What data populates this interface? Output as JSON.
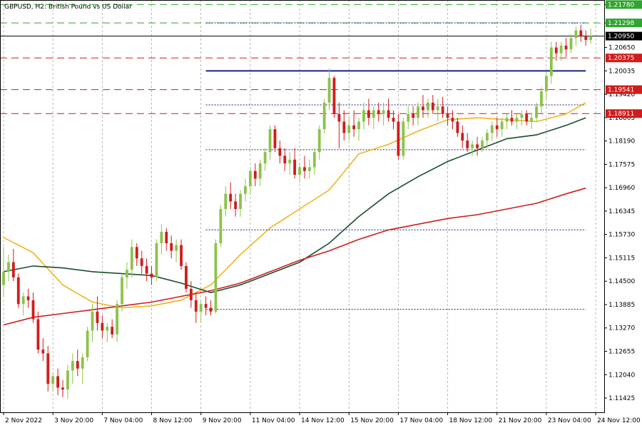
{
  "chart_data": {
    "type": "candlestick",
    "title": "GBPUSD, H2:  British Pound vs US Dollar",
    "price_ticks": [
      "1.21780",
      "1.21298",
      "1.20650",
      "1.20035",
      "1.19420",
      "1.18805",
      "1.18190",
      "1.17575",
      "1.16960",
      "1.16345",
      "1.15730",
      "1.15115",
      "1.14500",
      "1.13885",
      "1.13270",
      "1.12655",
      "1.12040",
      "1.11425"
    ],
    "ylim": [
      1.1105,
      1.219
    ],
    "time_labels": [
      {
        "label": "2 Nov 2022",
        "bar": 0
      },
      {
        "label": "3 Nov 20:00",
        "bar": 10
      },
      {
        "label": "7 Nov 04:00",
        "bar": 20
      },
      {
        "label": "8 Nov 12:00",
        "bar": 30
      },
      {
        "label": "9 Nov 20:00",
        "bar": 40
      },
      {
        "label": "11 Nov 04:00",
        "bar": 50
      },
      {
        "label": "14 Nov 12:00",
        "bar": 60
      },
      {
        "label": "15 Nov 20:00",
        "bar": 70
      },
      {
        "label": "17 Nov 04:00",
        "bar": 80
      },
      {
        "label": "18 Nov 12:00",
        "bar": 90
      },
      {
        "label": "21 Nov 20:00",
        "bar": 100
      },
      {
        "label": "23 Nov 04:00",
        "bar": 110
      },
      {
        "label": "24 Nov 12:00",
        "bar": 120
      }
    ],
    "horizontal_levels": [
      {
        "value": 1.2178,
        "label": "1.21780",
        "color": "#2fa52f",
        "style": "dashed",
        "badge": true
      },
      {
        "value": 1.21298,
        "label": "1.21298",
        "color": "#2fa52f",
        "style": "dashed",
        "badge": true
      },
      {
        "value": 1.2095,
        "label": "1.20950",
        "color": "#000000",
        "style": "solid",
        "badge": true
      },
      {
        "value": 1.20375,
        "label": "1.20375",
        "color": "#d01c1c",
        "style": "dashed",
        "badge": true
      },
      {
        "value": 1.19541,
        "label": "1.19541",
        "color": "#d01c1c",
        "style": "dashed",
        "badge": true
      },
      {
        "value": 1.18911,
        "label": "1.18911",
        "color": "#d01c1c",
        "style": "dashed",
        "badge": true
      }
    ],
    "channel_lines": [
      {
        "value": 1.21298,
        "from_bar": 41,
        "to_bar": 118,
        "color": "#1a237e",
        "style": "dotted"
      },
      {
        "value": 1.20035,
        "from_bar": 41,
        "to_bar": 118,
        "color": "#1a237e",
        "style": "solid"
      },
      {
        "value": 1.1914,
        "from_bar": 41,
        "to_bar": 118,
        "color": "#1a237e",
        "style": "dotted"
      },
      {
        "value": 1.1796,
        "from_bar": 41,
        "to_bar": 118,
        "color": "#1a237e",
        "style": "dotted"
      },
      {
        "value": 1.1585,
        "from_bar": 41,
        "to_bar": 118,
        "color": "#1a237e",
        "style": "dotted"
      },
      {
        "value": 1.1376,
        "from_bar": 41,
        "to_bar": 118,
        "color": "#1a237e",
        "style": "dotted"
      }
    ],
    "moving_averages": [
      {
        "color": "#f0b41e",
        "points": [
          [
            0,
            1.1565
          ],
          [
            6,
            1.1525
          ],
          [
            12,
            1.144
          ],
          [
            18,
            1.1395
          ],
          [
            24,
            1.138
          ],
          [
            30,
            1.1385
          ],
          [
            36,
            1.14
          ],
          [
            42,
            1.144
          ],
          [
            48,
            1.152
          ],
          [
            54,
            1.159
          ],
          [
            60,
            1.164
          ],
          [
            66,
            1.169
          ],
          [
            72,
            1.1785
          ],
          [
            78,
            1.181
          ],
          [
            84,
            1.1845
          ],
          [
            90,
            1.1875
          ],
          [
            96,
            1.188
          ],
          [
            102,
            1.1875
          ],
          [
            108,
            1.187
          ],
          [
            114,
            1.189
          ],
          [
            118,
            1.192
          ]
        ]
      },
      {
        "color": "#1a4d2e",
        "points": [
          [
            0,
            1.1475
          ],
          [
            6,
            1.149
          ],
          [
            12,
            1.1485
          ],
          [
            18,
            1.1475
          ],
          [
            24,
            1.147
          ],
          [
            30,
            1.1465
          ],
          [
            36,
            1.1445
          ],
          [
            42,
            1.142
          ],
          [
            48,
            1.144
          ],
          [
            54,
            1.147
          ],
          [
            60,
            1.15
          ],
          [
            66,
            1.155
          ],
          [
            72,
            1.162
          ],
          [
            78,
            1.168
          ],
          [
            84,
            1.1725
          ],
          [
            90,
            1.1765
          ],
          [
            96,
            1.1795
          ],
          [
            102,
            1.1825
          ],
          [
            108,
            1.1835
          ],
          [
            114,
            1.186
          ],
          [
            118,
            1.188
          ]
        ]
      },
      {
        "color": "#d01c1c",
        "points": [
          [
            0,
            1.1335
          ],
          [
            6,
            1.1355
          ],
          [
            12,
            1.1365
          ],
          [
            18,
            1.1375
          ],
          [
            24,
            1.1385
          ],
          [
            30,
            1.1395
          ],
          [
            36,
            1.141
          ],
          [
            42,
            1.1425
          ],
          [
            48,
            1.1445
          ],
          [
            54,
            1.1475
          ],
          [
            60,
            1.1505
          ],
          [
            66,
            1.153
          ],
          [
            72,
            1.156
          ],
          [
            78,
            1.1585
          ],
          [
            84,
            1.16
          ],
          [
            90,
            1.1615
          ],
          [
            96,
            1.1625
          ],
          [
            102,
            1.164
          ],
          [
            108,
            1.1655
          ],
          [
            114,
            1.168
          ],
          [
            118,
            1.1695
          ]
        ]
      }
    ],
    "bar_count": 122,
    "candles": [
      {
        "o": 1.144,
        "h": 1.154,
        "l": 1.141,
        "c": 1.1475
      },
      {
        "o": 1.1475,
        "h": 1.152,
        "l": 1.145,
        "c": 1.15
      },
      {
        "o": 1.15,
        "h": 1.1535,
        "l": 1.145,
        "c": 1.146
      },
      {
        "o": 1.146,
        "h": 1.147,
        "l": 1.138,
        "c": 1.139
      },
      {
        "o": 1.139,
        "h": 1.142,
        "l": 1.136,
        "c": 1.141
      },
      {
        "o": 1.141,
        "h": 1.143,
        "l": 1.138,
        "c": 1.14
      },
      {
        "o": 1.14,
        "h": 1.142,
        "l": 1.134,
        "c": 1.135
      },
      {
        "o": 1.135,
        "h": 1.137,
        "l": 1.126,
        "c": 1.127
      },
      {
        "o": 1.127,
        "h": 1.13,
        "l": 1.124,
        "c": 1.126
      },
      {
        "o": 1.126,
        "h": 1.128,
        "l": 1.116,
        "c": 1.118
      },
      {
        "o": 1.118,
        "h": 1.121,
        "l": 1.116,
        "c": 1.12
      },
      {
        "o": 1.12,
        "h": 1.122,
        "l": 1.115,
        "c": 1.117
      },
      {
        "o": 1.117,
        "h": 1.119,
        "l": 1.1145,
        "c": 1.1165
      },
      {
        "o": 1.1165,
        "h": 1.123,
        "l": 1.114,
        "c": 1.1215
      },
      {
        "o": 1.1215,
        "h": 1.126,
        "l": 1.118,
        "c": 1.124
      },
      {
        "o": 1.124,
        "h": 1.127,
        "l": 1.12,
        "c": 1.122
      },
      {
        "o": 1.122,
        "h": 1.126,
        "l": 1.118,
        "c": 1.125
      },
      {
        "o": 1.125,
        "h": 1.133,
        "l": 1.124,
        "c": 1.132
      },
      {
        "o": 1.132,
        "h": 1.139,
        "l": 1.129,
        "c": 1.137
      },
      {
        "o": 1.137,
        "h": 1.141,
        "l": 1.132,
        "c": 1.134
      },
      {
        "o": 1.134,
        "h": 1.136,
        "l": 1.13,
        "c": 1.132
      },
      {
        "o": 1.132,
        "h": 1.134,
        "l": 1.129,
        "c": 1.133
      },
      {
        "o": 1.133,
        "h": 1.135,
        "l": 1.13,
        "c": 1.131
      },
      {
        "o": 1.131,
        "h": 1.14,
        "l": 1.129,
        "c": 1.139
      },
      {
        "o": 1.139,
        "h": 1.147,
        "l": 1.137,
        "c": 1.146
      },
      {
        "o": 1.146,
        "h": 1.15,
        "l": 1.143,
        "c": 1.148
      },
      {
        "o": 1.148,
        "h": 1.156,
        "l": 1.146,
        "c": 1.154
      },
      {
        "o": 1.154,
        "h": 1.155,
        "l": 1.149,
        "c": 1.151
      },
      {
        "o": 1.151,
        "h": 1.153,
        "l": 1.147,
        "c": 1.149
      },
      {
        "o": 1.149,
        "h": 1.151,
        "l": 1.145,
        "c": 1.147
      },
      {
        "o": 1.147,
        "h": 1.149,
        "l": 1.144,
        "c": 1.146
      },
      {
        "o": 1.146,
        "h": 1.156,
        "l": 1.145,
        "c": 1.155
      },
      {
        "o": 1.155,
        "h": 1.16,
        "l": 1.152,
        "c": 1.158
      },
      {
        "o": 1.158,
        "h": 1.159,
        "l": 1.153,
        "c": 1.155
      },
      {
        "o": 1.155,
        "h": 1.157,
        "l": 1.151,
        "c": 1.153
      },
      {
        "o": 1.153,
        "h": 1.156,
        "l": 1.15,
        "c": 1.1545
      },
      {
        "o": 1.1545,
        "h": 1.156,
        "l": 1.148,
        "c": 1.149
      },
      {
        "o": 1.149,
        "h": 1.15,
        "l": 1.142,
        "c": 1.143
      },
      {
        "o": 1.143,
        "h": 1.145,
        "l": 1.138,
        "c": 1.14
      },
      {
        "o": 1.14,
        "h": 1.142,
        "l": 1.134,
        "c": 1.137
      },
      {
        "o": 1.137,
        "h": 1.14,
        "l": 1.134,
        "c": 1.139
      },
      {
        "o": 1.139,
        "h": 1.141,
        "l": 1.136,
        "c": 1.138
      },
      {
        "o": 1.138,
        "h": 1.14,
        "l": 1.136,
        "c": 1.137
      },
      {
        "o": 1.137,
        "h": 1.156,
        "l": 1.1365,
        "c": 1.155
      },
      {
        "o": 1.155,
        "h": 1.165,
        "l": 1.154,
        "c": 1.164
      },
      {
        "o": 1.164,
        "h": 1.17,
        "l": 1.162,
        "c": 1.168
      },
      {
        "o": 1.168,
        "h": 1.171,
        "l": 1.164,
        "c": 1.166
      },
      {
        "o": 1.166,
        "h": 1.168,
        "l": 1.162,
        "c": 1.164
      },
      {
        "o": 1.164,
        "h": 1.169,
        "l": 1.162,
        "c": 1.168
      },
      {
        "o": 1.168,
        "h": 1.172,
        "l": 1.166,
        "c": 1.17
      },
      {
        "o": 1.17,
        "h": 1.175,
        "l": 1.168,
        "c": 1.174
      },
      {
        "o": 1.174,
        "h": 1.176,
        "l": 1.17,
        "c": 1.172
      },
      {
        "o": 1.172,
        "h": 1.177,
        "l": 1.17,
        "c": 1.176
      },
      {
        "o": 1.176,
        "h": 1.18,
        "l": 1.174,
        "c": 1.179
      },
      {
        "o": 1.179,
        "h": 1.186,
        "l": 1.177,
        "c": 1.185
      },
      {
        "o": 1.185,
        "h": 1.186,
        "l": 1.179,
        "c": 1.18
      },
      {
        "o": 1.18,
        "h": 1.182,
        "l": 1.176,
        "c": 1.178
      },
      {
        "o": 1.178,
        "h": 1.18,
        "l": 1.174,
        "c": 1.176
      },
      {
        "o": 1.176,
        "h": 1.179,
        "l": 1.173,
        "c": 1.177
      },
      {
        "o": 1.177,
        "h": 1.18,
        "l": 1.172,
        "c": 1.173
      },
      {
        "o": 1.173,
        "h": 1.176,
        "l": 1.171,
        "c": 1.175
      },
      {
        "o": 1.175,
        "h": 1.178,
        "l": 1.172,
        "c": 1.174
      },
      {
        "o": 1.174,
        "h": 1.177,
        "l": 1.172,
        "c": 1.175
      },
      {
        "o": 1.175,
        "h": 1.18,
        "l": 1.173,
        "c": 1.179
      },
      {
        "o": 1.179,
        "h": 1.186,
        "l": 1.177,
        "c": 1.185
      },
      {
        "o": 1.185,
        "h": 1.193,
        "l": 1.184,
        "c": 1.192
      },
      {
        "o": 1.192,
        "h": 1.201,
        "l": 1.19,
        "c": 1.1985
      },
      {
        "o": 1.1985,
        "h": 1.199,
        "l": 1.188,
        "c": 1.189
      },
      {
        "o": 1.189,
        "h": 1.192,
        "l": 1.18,
        "c": 1.187
      },
      {
        "o": 1.187,
        "h": 1.19,
        "l": 1.182,
        "c": 1.184
      },
      {
        "o": 1.184,
        "h": 1.188,
        "l": 1.182,
        "c": 1.186
      },
      {
        "o": 1.186,
        "h": 1.19,
        "l": 1.183,
        "c": 1.185
      },
      {
        "o": 1.185,
        "h": 1.188,
        "l": 1.182,
        "c": 1.187
      },
      {
        "o": 1.187,
        "h": 1.192,
        "l": 1.185,
        "c": 1.19
      },
      {
        "o": 1.19,
        "h": 1.193,
        "l": 1.186,
        "c": 1.188
      },
      {
        "o": 1.188,
        "h": 1.191,
        "l": 1.185,
        "c": 1.19
      },
      {
        "o": 1.19,
        "h": 1.192,
        "l": 1.187,
        "c": 1.189
      },
      {
        "o": 1.189,
        "h": 1.192,
        "l": 1.186,
        "c": 1.19
      },
      {
        "o": 1.19,
        "h": 1.193,
        "l": 1.187,
        "c": 1.188
      },
      {
        "o": 1.188,
        "h": 1.19,
        "l": 1.185,
        "c": 1.187
      },
      {
        "o": 1.187,
        "h": 1.189,
        "l": 1.177,
        "c": 1.178
      },
      {
        "o": 1.178,
        "h": 1.188,
        "l": 1.177,
        "c": 1.187
      },
      {
        "o": 1.187,
        "h": 1.191,
        "l": 1.185,
        "c": 1.189
      },
      {
        "o": 1.189,
        "h": 1.191,
        "l": 1.186,
        "c": 1.188
      },
      {
        "o": 1.188,
        "h": 1.192,
        "l": 1.186,
        "c": 1.191
      },
      {
        "o": 1.191,
        "h": 1.194,
        "l": 1.188,
        "c": 1.19
      },
      {
        "o": 1.19,
        "h": 1.193,
        "l": 1.188,
        "c": 1.192
      },
      {
        "o": 1.192,
        "h": 1.194,
        "l": 1.189,
        "c": 1.19
      },
      {
        "o": 1.19,
        "h": 1.193,
        "l": 1.187,
        "c": 1.191
      },
      {
        "o": 1.191,
        "h": 1.1935,
        "l": 1.188,
        "c": 1.189
      },
      {
        "o": 1.189,
        "h": 1.191,
        "l": 1.186,
        "c": 1.188
      },
      {
        "o": 1.188,
        "h": 1.19,
        "l": 1.185,
        "c": 1.187
      },
      {
        "o": 1.187,
        "h": 1.188,
        "l": 1.183,
        "c": 1.184
      },
      {
        "o": 1.184,
        "h": 1.186,
        "l": 1.18,
        "c": 1.182
      },
      {
        "o": 1.182,
        "h": 1.184,
        "l": 1.179,
        "c": 1.18
      },
      {
        "o": 1.18,
        "h": 1.182,
        "l": 1.178,
        "c": 1.181
      },
      {
        "o": 1.181,
        "h": 1.183,
        "l": 1.178,
        "c": 1.18
      },
      {
        "o": 1.18,
        "h": 1.183,
        "l": 1.179,
        "c": 1.182
      },
      {
        "o": 1.182,
        "h": 1.185,
        "l": 1.18,
        "c": 1.184
      },
      {
        "o": 1.184,
        "h": 1.187,
        "l": 1.182,
        "c": 1.186
      },
      {
        "o": 1.186,
        "h": 1.188,
        "l": 1.183,
        "c": 1.185
      },
      {
        "o": 1.185,
        "h": 1.188,
        "l": 1.183,
        "c": 1.187
      },
      {
        "o": 1.187,
        "h": 1.189,
        "l": 1.185,
        "c": 1.188
      },
      {
        "o": 1.188,
        "h": 1.19,
        "l": 1.186,
        "c": 1.187
      },
      {
        "o": 1.187,
        "h": 1.189,
        "l": 1.185,
        "c": 1.188
      },
      {
        "o": 1.188,
        "h": 1.19,
        "l": 1.186,
        "c": 1.189
      },
      {
        "o": 1.189,
        "h": 1.19,
        "l": 1.186,
        "c": 1.187
      },
      {
        "o": 1.187,
        "h": 1.189,
        "l": 1.185,
        "c": 1.188
      },
      {
        "o": 1.188,
        "h": 1.192,
        "l": 1.187,
        "c": 1.191
      },
      {
        "o": 1.191,
        "h": 1.196,
        "l": 1.189,
        "c": 1.195
      },
      {
        "o": 1.195,
        "h": 1.2,
        "l": 1.193,
        "c": 1.199
      },
      {
        "o": 1.199,
        "h": 1.208,
        "l": 1.197,
        "c": 1.2065
      },
      {
        "o": 1.2065,
        "h": 1.208,
        "l": 1.203,
        "c": 1.205
      },
      {
        "o": 1.205,
        "h": 1.208,
        "l": 1.203,
        "c": 1.207
      },
      {
        "o": 1.207,
        "h": 1.209,
        "l": 1.204,
        "c": 1.206
      },
      {
        "o": 1.206,
        "h": 1.21,
        "l": 1.205,
        "c": 1.209
      },
      {
        "o": 1.209,
        "h": 1.212,
        "l": 1.207,
        "c": 1.211
      },
      {
        "o": 1.211,
        "h": 1.2125,
        "l": 1.208,
        "c": 1.2095
      },
      {
        "o": 1.2095,
        "h": 1.211,
        "l": 1.207,
        "c": 1.2085
      },
      {
        "o": 1.2085,
        "h": 1.2115,
        "l": 1.2075,
        "c": 1.2095
      }
    ],
    "grid": true,
    "colors": {
      "bull": "#8bc34a",
      "bear": "#d01c1c",
      "background": "#ffffff",
      "grid": "#888888"
    }
  }
}
